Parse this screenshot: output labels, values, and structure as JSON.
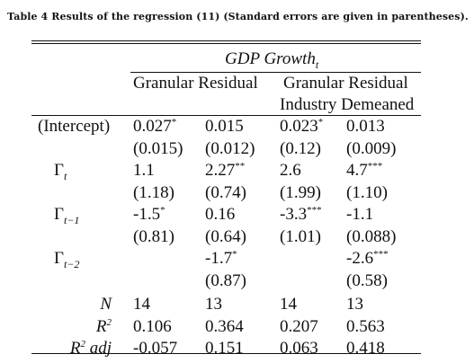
{
  "caption": "Table 4 Results of the regression (11) (Standard errors are given in parentheses).",
  "header": {
    "dependent": "GDP Growth",
    "dependent_sub": "t",
    "group1": "Granular Residual",
    "group2_line1": "Granular Residual",
    "group2_line2": "Industry Demeaned"
  },
  "rows": [
    {
      "label": "(Intercept)",
      "c1": "0.027",
      "c1s": "*",
      "c2": "0.015",
      "c2s": "",
      "c3": "0.023",
      "c3s": "*",
      "c4": "0.013",
      "c4s": ""
    },
    {
      "label": "",
      "c1": "(0.015)",
      "c2": "(0.012)",
      "c3": "(0.12)",
      "c4": "(0.009)"
    },
    {
      "label_main": "Γ",
      "label_sub": "t",
      "c1": "1.1",
      "c1s": "",
      "c2": "2.27",
      "c2s": "**",
      "c3": "2.6",
      "c3s": "",
      "c4": "4.7",
      "c4s": "***"
    },
    {
      "label": "",
      "c1": "(1.18)",
      "c2": "(0.74)",
      "c3": "(1.99)",
      "c4": "(1.10)"
    },
    {
      "label_main": "Γ",
      "label_sub": "t−1",
      "c1": "-1.5",
      "c1s": "*",
      "c2": "0.16",
      "c2s": "",
      "c3": "-3.3",
      "c3s": "***",
      "c4": "-1.1",
      "c4s": ""
    },
    {
      "label": "",
      "c1": "(0.81)",
      "c2": "(0.64)",
      "c3": "(1.01)",
      "c4": "(0.088)"
    },
    {
      "label_main": "Γ",
      "label_sub": "t−2",
      "c1": "",
      "c1s": "",
      "c2": "-1.7",
      "c2s": "*",
      "c3": "",
      "c3s": "",
      "c4": "-2.6",
      "c4s": "***"
    },
    {
      "label": "",
      "c1": "",
      "c2": "(0.87)",
      "c3": "",
      "c4": "(0.58)"
    }
  ],
  "stats": [
    {
      "label": "N",
      "label_sup": "",
      "label_rest": "",
      "c1": "14",
      "c2": "13",
      "c3": "14",
      "c4": "13"
    },
    {
      "label": "R",
      "label_sup": "2",
      "label_rest": "",
      "c1": "0.106",
      "c2": "0.364",
      "c3": "0.207",
      "c4": "0.563"
    },
    {
      "label": "R",
      "label_sup": "2",
      "label_rest": " adj",
      "c1": "-0.057",
      "c2": "0.151",
      "c3": "0.063",
      "c4": "0.418"
    }
  ]
}
